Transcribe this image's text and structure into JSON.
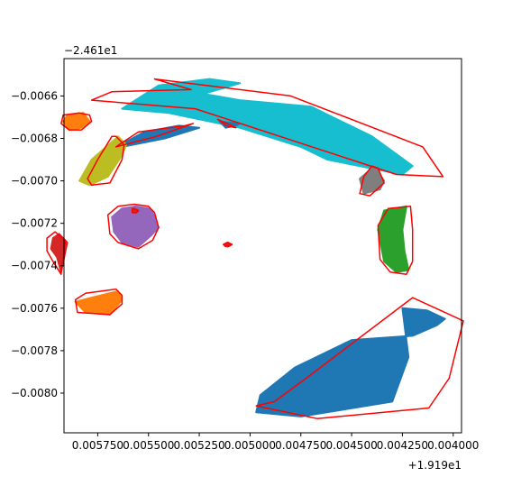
{
  "chart_data": {
    "type": "scatter",
    "title": "",
    "xlabel": "",
    "ylabel": "",
    "x_offset_label": "+1.919e1",
    "y_offset_label": "−2.461e1",
    "x_reversed": true,
    "xlim": [
      0.005916,
      0.003959
    ],
    "ylim": [
      -0.008187,
      -0.006424
    ],
    "x_ticks": [
      {
        "value": 0.00575,
        "label": "0.005750"
      },
      {
        "value": 0.0055,
        "label": "0.005500"
      },
      {
        "value": 0.00525,
        "label": "0.005250"
      },
      {
        "value": 0.005,
        "label": "0.005000"
      },
      {
        "value": 0.00475,
        "label": "0.004750"
      },
      {
        "value": 0.0045,
        "label": "0.004500"
      },
      {
        "value": 0.00425,
        "label": "0.004250"
      },
      {
        "value": 0.004,
        "label": "0.004000"
      }
    ],
    "y_ticks": [
      {
        "value": -0.0066,
        "label": "−0.0066"
      },
      {
        "value": -0.0068,
        "label": "−0.0068"
      },
      {
        "value": -0.007,
        "label": "−0.0070"
      },
      {
        "value": -0.0072,
        "label": "−0.0072"
      },
      {
        "value": -0.0074,
        "label": "−0.0074"
      },
      {
        "value": -0.0076,
        "label": "−0.0076"
      },
      {
        "value": -0.0078,
        "label": "−0.0078"
      },
      {
        "value": -0.008,
        "label": "−0.0080"
      }
    ],
    "hull_color": "#ff0000",
    "regions": [
      {
        "color": "#1f77b4",
        "points": [
          [
            0.00495,
            -0.00801
          ],
          [
            0.00478,
            -0.00788
          ],
          [
            0.0045,
            -0.00775
          ],
          [
            0.0042,
            -0.00773
          ],
          [
            0.00408,
            -0.00768
          ],
          [
            0.00404,
            -0.00765
          ],
          [
            0.00413,
            -0.00761
          ],
          [
            0.00425,
            -0.0076
          ],
          [
            0.00422,
            -0.00783
          ],
          [
            0.0043,
            -0.00804
          ],
          [
            0.00475,
            -0.00811
          ],
          [
            0.00497,
            -0.00809
          ]
        ]
      },
      {
        "color": "#17becf",
        "points": [
          [
            0.00523,
            -0.00659
          ],
          [
            0.00505,
            -0.00662
          ],
          [
            0.0047,
            -0.00665
          ],
          [
            0.0044,
            -0.00679
          ],
          [
            0.0042,
            -0.00693
          ],
          [
            0.00425,
            -0.00697
          ],
          [
            0.00462,
            -0.0069
          ],
          [
            0.00475,
            -0.00684
          ],
          [
            0.00505,
            -0.00675
          ],
          [
            0.0054,
            -0.00668
          ],
          [
            0.00563,
            -0.00666
          ],
          [
            0.00545,
            -0.00655
          ],
          [
            0.0052,
            -0.00652
          ],
          [
            0.00505,
            -0.00654
          ]
        ]
      },
      {
        "color": "#1f77b4",
        "points": [
          [
            0.00562,
            -0.00682
          ],
          [
            0.00552,
            -0.00677
          ],
          [
            0.00535,
            -0.00674
          ],
          [
            0.00525,
            -0.00675
          ],
          [
            0.00542,
            -0.0068
          ],
          [
            0.00563,
            -0.00684
          ]
        ]
      },
      {
        "color": "#bcbd22",
        "points": [
          [
            0.00566,
            -0.0068
          ],
          [
            0.00578,
            -0.0069
          ],
          [
            0.00584,
            -0.007
          ],
          [
            0.00579,
            -0.00702
          ],
          [
            0.0057,
            -0.00698
          ],
          [
            0.00563,
            -0.00688
          ],
          [
            0.00561,
            -0.00683
          ],
          [
            0.00565,
            -0.00679
          ]
        ]
      },
      {
        "color": "#ff7f0e",
        "points": [
          [
            0.00582,
            -0.00668
          ],
          [
            0.0059,
            -0.00669
          ],
          [
            0.00592,
            -0.00672
          ],
          [
            0.00589,
            -0.00676
          ],
          [
            0.00583,
            -0.00675
          ],
          [
            0.00579,
            -0.00672
          ]
        ]
      },
      {
        "color": "#9467bd",
        "points": [
          [
            0.00556,
            -0.00712
          ],
          [
            0.00563,
            -0.00713
          ],
          [
            0.00568,
            -0.00717
          ],
          [
            0.00567,
            -0.00724
          ],
          [
            0.00563,
            -0.00729
          ],
          [
            0.00555,
            -0.00731
          ],
          [
            0.00549,
            -0.00726
          ],
          [
            0.00545,
            -0.00722
          ],
          [
            0.00548,
            -0.00715
          ],
          [
            0.0055,
            -0.00713
          ]
        ]
      },
      {
        "color": "#d62728",
        "points": [
          [
            0.0059,
            -0.00729
          ],
          [
            0.00594,
            -0.00725
          ],
          [
            0.00597,
            -0.00727
          ],
          [
            0.00598,
            -0.00732
          ],
          [
            0.00595,
            -0.00736
          ],
          [
            0.00593,
            -0.00743
          ]
        ]
      },
      {
        "color": "#ff7f0e",
        "points": [
          [
            0.00565,
            -0.00752
          ],
          [
            0.00578,
            -0.00755
          ],
          [
            0.00586,
            -0.00757
          ],
          [
            0.00581,
            -0.00762
          ],
          [
            0.00569,
            -0.00763
          ],
          [
            0.00563,
            -0.00756
          ]
        ]
      },
      {
        "color": "#2ca02c",
        "points": [
          [
            0.00423,
            -0.00712
          ],
          [
            0.00434,
            -0.00714
          ],
          [
            0.00437,
            -0.00723
          ],
          [
            0.00434,
            -0.00738
          ],
          [
            0.00428,
            -0.00743
          ],
          [
            0.00422,
            -0.00742
          ],
          [
            0.00424,
            -0.00733
          ],
          [
            0.00425,
            -0.00723
          ]
        ]
      },
      {
        "color": "#7f7f7f",
        "points": [
          [
            0.0044,
            -0.00694
          ],
          [
            0.00446,
            -0.00699
          ],
          [
            0.00444,
            -0.00706
          ],
          [
            0.00436,
            -0.00704
          ],
          [
            0.00434,
            -0.007
          ],
          [
            0.00438,
            -0.00694
          ]
        ]
      },
      {
        "color": "#1f77b4",
        "points": [
          [
            0.00505,
            -0.00673
          ],
          [
            0.00515,
            -0.00672
          ],
          [
            0.00512,
            -0.00675
          ],
          [
            0.00507,
            -0.00674
          ]
        ]
      },
      {
        "color": "#d62728",
        "points": [
          [
            0.00555,
            -0.00714
          ],
          [
            0.00557,
            -0.00713
          ],
          [
            0.00558,
            -0.00714
          ],
          [
            0.00556,
            -0.00715
          ]
        ]
      },
      {
        "color": "#d62728",
        "points": [
          [
            0.00509,
            -0.0073
          ],
          [
            0.00511,
            -0.00731
          ],
          [
            0.00513,
            -0.0073
          ],
          [
            0.00511,
            -0.00729
          ]
        ]
      }
    ],
    "hulls": [
      {
        "points": [
          [
            0.00488,
            -0.00804
          ],
          [
            0.00471,
            -0.00792
          ],
          [
            0.0042,
            -0.00755
          ],
          [
            0.00395,
            -0.00766
          ],
          [
            0.00402,
            -0.00793
          ],
          [
            0.00412,
            -0.00807
          ],
          [
            0.00467,
            -0.00812
          ],
          [
            0.00497,
            -0.00806
          ]
        ]
      },
      {
        "points": [
          [
            0.00529,
            -0.00657
          ],
          [
            0.00547,
            -0.00652
          ],
          [
            0.0048,
            -0.0066
          ],
          [
            0.00415,
            -0.00684
          ],
          [
            0.00405,
            -0.00698
          ],
          [
            0.00428,
            -0.00697
          ],
          [
            0.00527,
            -0.00666
          ],
          [
            0.00578,
            -0.00662
          ],
          [
            0.00568,
            -0.00658
          ]
        ]
      },
      {
        "points": [
          [
            0.00563,
            -0.00682
          ],
          [
            0.00555,
            -0.00677
          ],
          [
            0.00532,
            -0.00674
          ],
          [
            0.00528,
            -0.00673
          ],
          [
            0.00546,
            -0.00679
          ],
          [
            0.00566,
            -0.00684
          ]
        ]
      },
      {
        "points": [
          [
            0.00568,
            -0.00679
          ],
          [
            0.00575,
            -0.0069
          ],
          [
            0.0058,
            -0.00699
          ],
          [
            0.00578,
            -0.00702
          ],
          [
            0.00569,
            -0.00701
          ],
          [
            0.00563,
            -0.0069
          ],
          [
            0.00562,
            -0.00683
          ],
          [
            0.00566,
            -0.00679
          ]
        ]
      },
      {
        "points": [
          [
            0.00584,
            -0.00668
          ],
          [
            0.00592,
            -0.00669
          ],
          [
            0.00593,
            -0.00673
          ],
          [
            0.00589,
            -0.00676
          ],
          [
            0.00583,
            -0.00676
          ],
          [
            0.00578,
            -0.00672
          ],
          [
            0.00579,
            -0.00669
          ]
        ]
      },
      {
        "points": [
          [
            0.00557,
            -0.00711
          ],
          [
            0.00565,
            -0.00712
          ],
          [
            0.0057,
            -0.00716
          ],
          [
            0.00569,
            -0.00725
          ],
          [
            0.00565,
            -0.00729
          ],
          [
            0.00555,
            -0.00732
          ],
          [
            0.00548,
            -0.00728
          ],
          [
            0.00545,
            -0.00722
          ],
          [
            0.00547,
            -0.00715
          ],
          [
            0.0055,
            -0.00712
          ]
        ]
      },
      {
        "points": [
          [
            0.00591,
            -0.00728
          ],
          [
            0.00596,
            -0.00724
          ],
          [
            0.006,
            -0.00727
          ],
          [
            0.006,
            -0.00733
          ],
          [
            0.00597,
            -0.00738
          ],
          [
            0.00593,
            -0.00744
          ]
        ]
      },
      {
        "points": [
          [
            0.00566,
            -0.00751
          ],
          [
            0.00581,
            -0.00753
          ],
          [
            0.00586,
            -0.00756
          ],
          [
            0.00585,
            -0.00762
          ],
          [
            0.00569,
            -0.00763
          ],
          [
            0.00563,
            -0.00758
          ],
          [
            0.00563,
            -0.00754
          ]
        ]
      },
      {
        "points": [
          [
            0.00421,
            -0.00712
          ],
          [
            0.00432,
            -0.00713
          ],
          [
            0.00437,
            -0.00721
          ],
          [
            0.00436,
            -0.00737
          ],
          [
            0.00431,
            -0.00743
          ],
          [
            0.00423,
            -0.00744
          ],
          [
            0.0042,
            -0.00738
          ],
          [
            0.0042,
            -0.00723
          ]
        ]
      },
      {
        "points": [
          [
            0.0044,
            -0.00693
          ],
          [
            0.00444,
            -0.00698
          ],
          [
            0.00446,
            -0.00706
          ],
          [
            0.00441,
            -0.00707
          ],
          [
            0.00434,
            -0.00701
          ],
          [
            0.00437,
            -0.00694
          ]
        ]
      },
      {
        "points": [
          [
            0.00513,
            -0.00673
          ],
          [
            0.00516,
            -0.00671
          ],
          [
            0.00509,
            -0.00674
          ],
          [
            0.00507,
            -0.00675
          ],
          [
            0.00512,
            -0.00674
          ]
        ]
      },
      {
        "points": [
          [
            0.00555,
            -0.00714
          ],
          [
            0.00558,
            -0.00713
          ],
          [
            0.00558,
            -0.00715
          ],
          [
            0.00556,
            -0.00715
          ]
        ]
      },
      {
        "points": [
          [
            0.00509,
            -0.0073
          ],
          [
            0.00512,
            -0.00731
          ],
          [
            0.00513,
            -0.0073
          ],
          [
            0.00511,
            -0.00729
          ]
        ]
      }
    ]
  }
}
